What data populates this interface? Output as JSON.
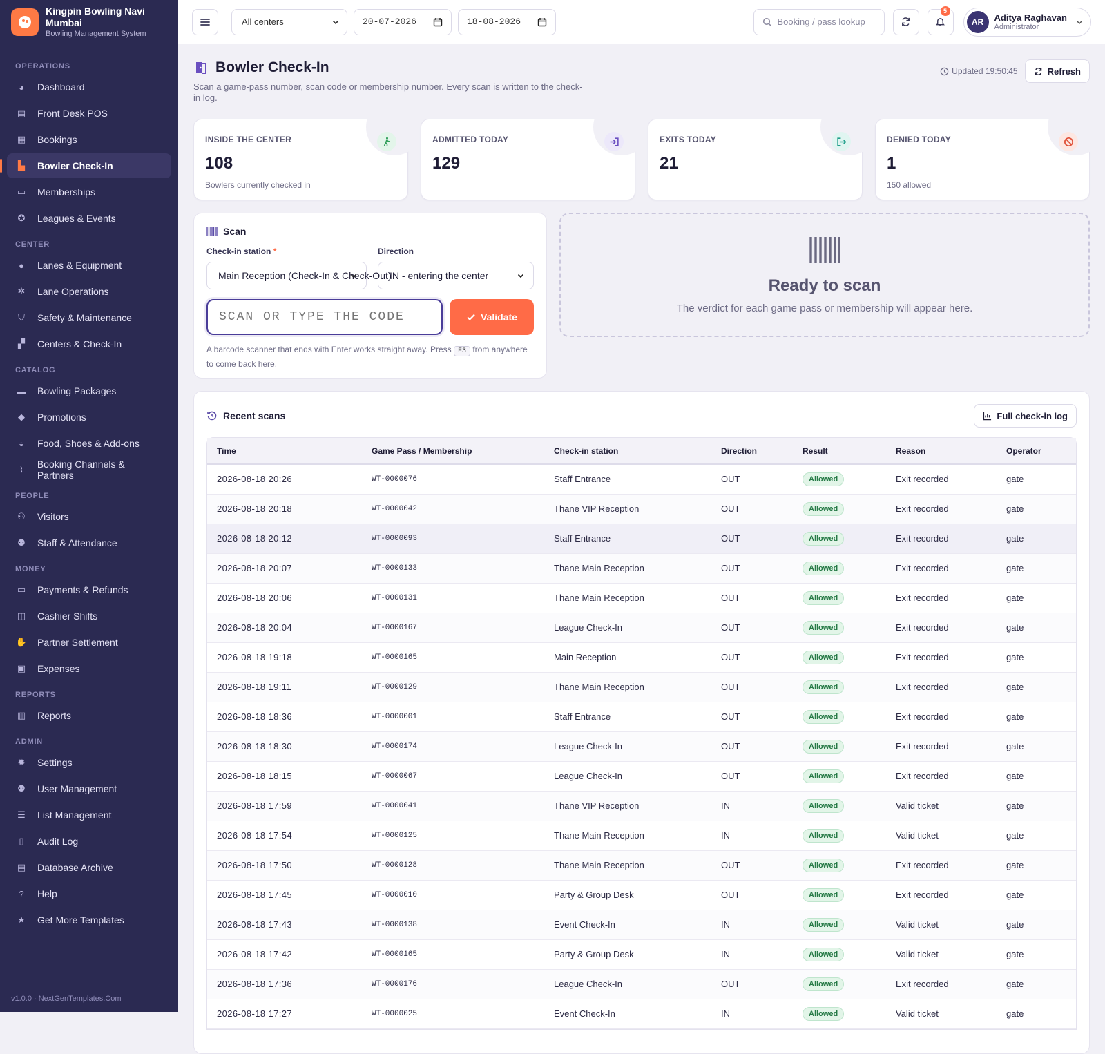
{
  "brand": {
    "name": "Kingpin Bowling Navi Mumbai",
    "subtitle": "Bowling Management System"
  },
  "sidebar": {
    "sections": [
      {
        "title": "Operations",
        "items": [
          {
            "label": "Dashboard",
            "icon": "dashboard-icon"
          },
          {
            "label": "Front Desk POS",
            "icon": "pos-icon"
          },
          {
            "label": "Bookings",
            "icon": "bookings-icon"
          },
          {
            "label": "Bowler Check-In",
            "icon": "check-in-icon",
            "active": true
          },
          {
            "label": "Memberships",
            "icon": "membership-card-icon"
          },
          {
            "label": "Leagues & Events",
            "icon": "trophy-icon"
          }
        ]
      },
      {
        "title": "Center",
        "items": [
          {
            "label": "Lanes & Equipment",
            "icon": "bowling-ball-icon"
          },
          {
            "label": "Lane Operations",
            "icon": "gears-icon"
          },
          {
            "label": "Safety & Maintenance",
            "icon": "shield-icon"
          },
          {
            "label": "Centers & Check-In",
            "icon": "building-icon"
          }
        ]
      },
      {
        "title": "Catalog",
        "items": [
          {
            "label": "Bowling Packages",
            "icon": "package-icon"
          },
          {
            "label": "Promotions",
            "icon": "tag-icon"
          },
          {
            "label": "Food, Shoes & Add-ons",
            "icon": "basket-icon"
          },
          {
            "label": "Booking Channels & Partners",
            "icon": "antenna-icon"
          }
        ]
      },
      {
        "title": "People",
        "items": [
          {
            "label": "Visitors",
            "icon": "users-icon"
          },
          {
            "label": "Staff & Attendance",
            "icon": "staff-icon"
          }
        ]
      },
      {
        "title": "Money",
        "items": [
          {
            "label": "Payments & Refunds",
            "icon": "credit-card-icon"
          },
          {
            "label": "Cashier Shifts",
            "icon": "cash-icon"
          },
          {
            "label": "Partner Settlement",
            "icon": "handshake-icon"
          },
          {
            "label": "Expenses",
            "icon": "wallet-icon"
          }
        ]
      },
      {
        "title": "Reports",
        "items": [
          {
            "label": "Reports",
            "icon": "chart-icon"
          }
        ]
      },
      {
        "title": "Admin",
        "items": [
          {
            "label": "Settings",
            "icon": "gear-icon"
          },
          {
            "label": "User Management",
            "icon": "user-cog-icon"
          },
          {
            "label": "List Management",
            "icon": "list-icon"
          },
          {
            "label": "Audit Log",
            "icon": "clipboard-icon"
          },
          {
            "label": "Database Archive",
            "icon": "archive-icon"
          },
          {
            "label": "Help",
            "icon": "help-icon"
          },
          {
            "label": "Get More Templates",
            "icon": "star-icon"
          }
        ]
      }
    ],
    "footer": "v1.0.0 · NextGenTemplates.Com"
  },
  "topbar": {
    "center_select": "All centers",
    "date_from": "20-07-2026",
    "date_to": "18-08-2026",
    "search_placeholder": "Booking / pass lookup",
    "notification_count": "5",
    "user": {
      "initials": "AR",
      "name": "Aditya Raghavan",
      "role": "Administrator"
    }
  },
  "page": {
    "title": "Bowler Check-In",
    "description": "Scan a game-pass number, scan code or membership number. Every scan is written to the check-in log.",
    "updated": "Updated 19:50:45",
    "refresh_label": "Refresh"
  },
  "stats": [
    {
      "label": "INSIDE THE CENTER",
      "value": "108",
      "sub": "Bowlers currently checked in",
      "icon": "walking-person-icon",
      "color": "#2e9e58",
      "bg": "#e3f5ea"
    },
    {
      "label": "ADMITTED TODAY",
      "value": "129",
      "sub": "",
      "icon": "sign-in-icon",
      "color": "#6a4fc0",
      "bg": "#ece8fa"
    },
    {
      "label": "EXITS TODAY",
      "value": "21",
      "sub": "",
      "icon": "sign-out-icon",
      "color": "#1f9e8a",
      "bg": "#e0f5f1"
    },
    {
      "label": "DENIED TODAY",
      "value": "1",
      "sub": "150 allowed",
      "icon": "ban-icon",
      "color": "#e0523a",
      "bg": "#fde7e2"
    }
  ],
  "scan": {
    "title": "Scan",
    "station_label": "Check-in station",
    "station_value": "Main Reception (Check-In & Check-Out)",
    "direction_label": "Direction",
    "direction_value": "IN - entering the center",
    "input_placeholder": "SCAN OR TYPE THE CODE",
    "validate_label": "Validate",
    "help_before": "A barcode scanner that ends with Enter works straight away. Press",
    "help_key": "F3",
    "help_after": "from anywhere to come back here."
  },
  "ready": {
    "title": "Ready to scan",
    "subtitle": "The verdict for each game pass or membership will appear here."
  },
  "recent": {
    "title": "Recent scans",
    "full_log_label": "Full check-in log",
    "columns": [
      "Time",
      "Game Pass / Membership",
      "Check-in station",
      "Direction",
      "Result",
      "Reason",
      "Operator"
    ],
    "rows": [
      [
        "2026-08-18 20:26",
        "WT-0000076",
        "Staff Entrance",
        "OUT",
        "Allowed",
        "Exit recorded",
        "gate"
      ],
      [
        "2026-08-18 20:18",
        "WT-0000042",
        "Thane VIP Reception",
        "OUT",
        "Allowed",
        "Exit recorded",
        "gate"
      ],
      [
        "2026-08-18 20:12",
        "WT-0000093",
        "Staff Entrance",
        "OUT",
        "Allowed",
        "Exit recorded",
        "gate"
      ],
      [
        "2026-08-18 20:07",
        "WT-0000133",
        "Thane Main Reception",
        "OUT",
        "Allowed",
        "Exit recorded",
        "gate"
      ],
      [
        "2026-08-18 20:06",
        "WT-0000131",
        "Thane Main Reception",
        "OUT",
        "Allowed",
        "Exit recorded",
        "gate"
      ],
      [
        "2026-08-18 20:04",
        "WT-0000167",
        "League Check-In",
        "OUT",
        "Allowed",
        "Exit recorded",
        "gate"
      ],
      [
        "2026-08-18 19:18",
        "WT-0000165",
        "Main Reception",
        "OUT",
        "Allowed",
        "Exit recorded",
        "gate"
      ],
      [
        "2026-08-18 19:11",
        "WT-0000129",
        "Thane Main Reception",
        "OUT",
        "Allowed",
        "Exit recorded",
        "gate"
      ],
      [
        "2026-08-18 18:36",
        "WT-0000001",
        "Staff Entrance",
        "OUT",
        "Allowed",
        "Exit recorded",
        "gate"
      ],
      [
        "2026-08-18 18:30",
        "WT-0000174",
        "League Check-In",
        "OUT",
        "Allowed",
        "Exit recorded",
        "gate"
      ],
      [
        "2026-08-18 18:15",
        "WT-0000067",
        "League Check-In",
        "OUT",
        "Allowed",
        "Exit recorded",
        "gate"
      ],
      [
        "2026-08-18 17:59",
        "WT-0000041",
        "Thane VIP Reception",
        "IN",
        "Allowed",
        "Valid ticket",
        "gate"
      ],
      [
        "2026-08-18 17:54",
        "WT-0000125",
        "Thane Main Reception",
        "IN",
        "Allowed",
        "Valid ticket",
        "gate"
      ],
      [
        "2026-08-18 17:50",
        "WT-0000128",
        "Thane Main Reception",
        "OUT",
        "Allowed",
        "Exit recorded",
        "gate"
      ],
      [
        "2026-08-18 17:45",
        "WT-0000010",
        "Party & Group Desk",
        "OUT",
        "Allowed",
        "Exit recorded",
        "gate"
      ],
      [
        "2026-08-18 17:43",
        "WT-0000138",
        "Event Check-In",
        "IN",
        "Allowed",
        "Valid ticket",
        "gate"
      ],
      [
        "2026-08-18 17:42",
        "WT-0000165",
        "Party & Group Desk",
        "IN",
        "Allowed",
        "Valid ticket",
        "gate"
      ],
      [
        "2026-08-18 17:36",
        "WT-0000176",
        "League Check-In",
        "OUT",
        "Allowed",
        "Exit recorded",
        "gate"
      ],
      [
        "2026-08-18 17:27",
        "WT-0000025",
        "Event Check-In",
        "IN",
        "Allowed",
        "Valid ticket",
        "gate"
      ]
    ]
  }
}
